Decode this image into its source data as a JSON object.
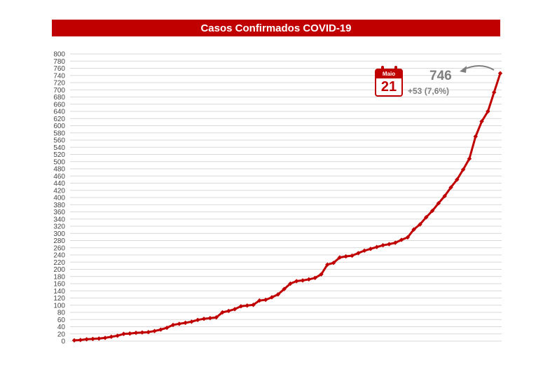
{
  "chart_data": {
    "type": "line",
    "title": "Casos Confirmados COVID-19",
    "xlabel": "",
    "ylabel": "",
    "ylim": [
      0,
      800
    ],
    "ytick_step": 20,
    "grid": true,
    "series_color": "#c00000",
    "values": [
      2,
      3,
      5,
      6,
      7,
      9,
      12,
      15,
      20,
      21,
      23,
      24,
      25,
      28,
      32,
      37,
      45,
      48,
      51,
      54,
      59,
      62,
      64,
      66,
      80,
      84,
      89,
      97,
      99,
      101,
      113,
      115,
      122,
      130,
      145,
      160,
      167,
      169,
      172,
      176,
      186,
      213,
      218,
      233,
      236,
      238,
      245,
      252,
      257,
      262,
      267,
      270,
      274,
      282,
      289,
      311,
      325,
      345,
      363,
      384,
      404,
      428,
      450,
      478,
      508,
      570,
      612,
      640,
      693,
      746
    ],
    "callout": {
      "month": "Maio",
      "day": "21",
      "total": "746",
      "delta": "+53 (7,6%)"
    }
  }
}
